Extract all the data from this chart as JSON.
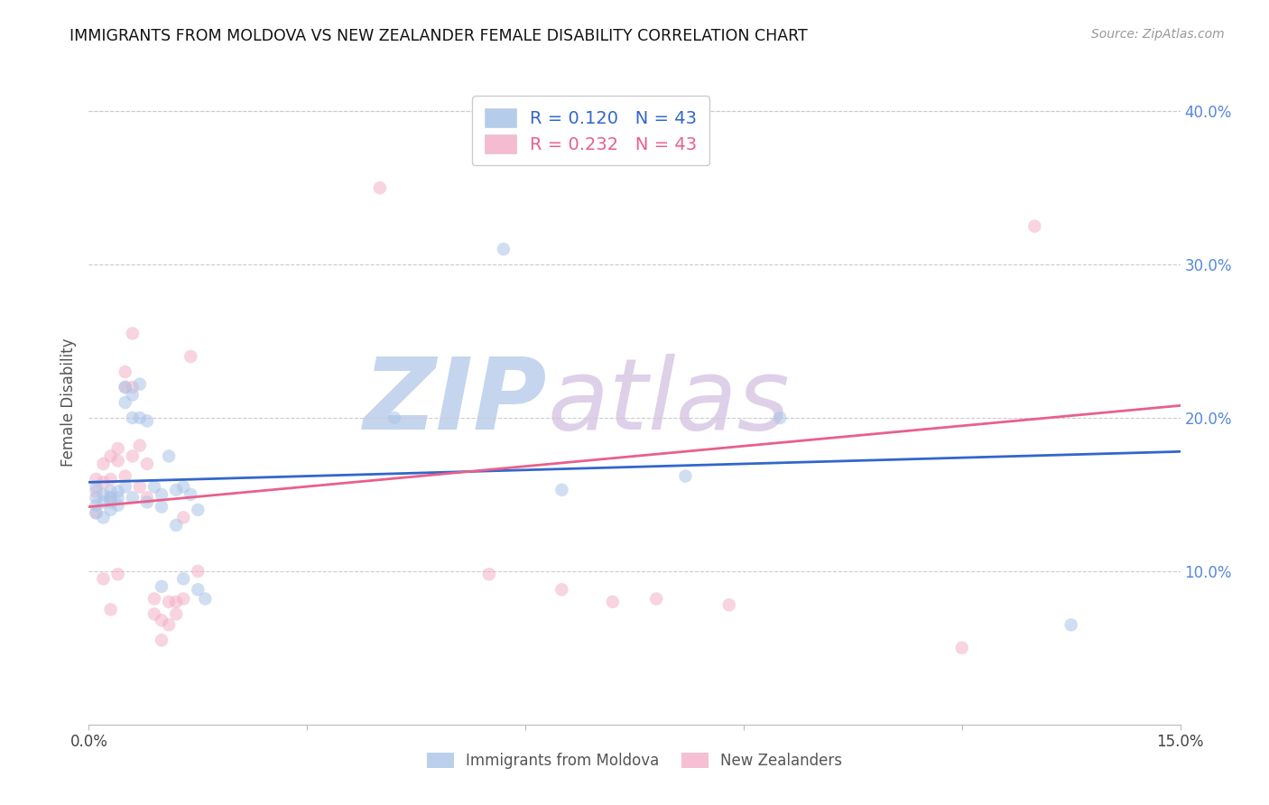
{
  "title": "IMMIGRANTS FROM MOLDOVA VS NEW ZEALANDER FEMALE DISABILITY CORRELATION CHART",
  "source": "Source: ZipAtlas.com",
  "ylabel": "Female Disability",
  "legend_blue_label": "Immigrants from Moldova",
  "legend_pink_label": "New Zealanders",
  "R_blue": 0.12,
  "R_pink": 0.232,
  "N_blue": 43,
  "N_pink": 43,
  "xlim": [
    0.0,
    0.15
  ],
  "ylim": [
    0.0,
    0.42
  ],
  "x_ticks": [
    0.0,
    0.03,
    0.06,
    0.09,
    0.12,
    0.15
  ],
  "x_tick_labels": [
    "0.0%",
    "",
    "",
    "",
    "",
    "15.0%"
  ],
  "y_ticks_right": [
    0.1,
    0.2,
    0.3,
    0.4
  ],
  "y_tick_labels_right": [
    "10.0%",
    "20.0%",
    "30.0%",
    "40.0%"
  ],
  "blue_color": "#aac4e8",
  "pink_color": "#f4afc8",
  "blue_line_color": "#3366cc",
  "pink_line_color": "#e8608a",
  "watermark_zip_color": "#c8d8f0",
  "watermark_atlas_color": "#d8cce8",
  "blue_x": [
    0.001,
    0.001,
    0.001,
    0.001,
    0.002,
    0.002,
    0.002,
    0.003,
    0.003,
    0.003,
    0.003,
    0.004,
    0.004,
    0.004,
    0.005,
    0.005,
    0.005,
    0.006,
    0.006,
    0.006,
    0.007,
    0.007,
    0.008,
    0.008,
    0.009,
    0.01,
    0.01,
    0.01,
    0.011,
    0.012,
    0.012,
    0.013,
    0.013,
    0.014,
    0.015,
    0.015,
    0.016,
    0.042,
    0.057,
    0.065,
    0.082,
    0.095,
    0.135
  ],
  "blue_y": [
    0.155,
    0.148,
    0.143,
    0.138,
    0.15,
    0.145,
    0.135,
    0.152,
    0.148,
    0.145,
    0.14,
    0.152,
    0.148,
    0.143,
    0.22,
    0.21,
    0.155,
    0.215,
    0.2,
    0.148,
    0.222,
    0.2,
    0.198,
    0.145,
    0.155,
    0.15,
    0.142,
    0.09,
    0.175,
    0.153,
    0.13,
    0.155,
    0.095,
    0.15,
    0.14,
    0.088,
    0.082,
    0.2,
    0.31,
    0.153,
    0.162,
    0.2,
    0.065
  ],
  "pink_x": [
    0.001,
    0.001,
    0.001,
    0.002,
    0.002,
    0.002,
    0.003,
    0.003,
    0.003,
    0.003,
    0.004,
    0.004,
    0.004,
    0.005,
    0.005,
    0.005,
    0.006,
    0.006,
    0.006,
    0.007,
    0.007,
    0.008,
    0.008,
    0.009,
    0.009,
    0.01,
    0.01,
    0.011,
    0.011,
    0.012,
    0.012,
    0.013,
    0.013,
    0.014,
    0.015,
    0.04,
    0.055,
    0.065,
    0.072,
    0.078,
    0.088,
    0.12,
    0.13
  ],
  "pink_y": [
    0.16,
    0.152,
    0.138,
    0.17,
    0.158,
    0.095,
    0.175,
    0.16,
    0.148,
    0.075,
    0.18,
    0.172,
    0.098,
    0.23,
    0.22,
    0.162,
    0.255,
    0.22,
    0.175,
    0.182,
    0.155,
    0.17,
    0.148,
    0.082,
    0.072,
    0.068,
    0.055,
    0.08,
    0.065,
    0.08,
    0.072,
    0.082,
    0.135,
    0.24,
    0.1,
    0.35,
    0.098,
    0.088,
    0.08,
    0.082,
    0.078,
    0.05,
    0.325
  ],
  "blue_line_x0": 0.0,
  "blue_line_x1": 0.15,
  "blue_line_y0": 0.158,
  "blue_line_y1": 0.178,
  "pink_line_x0": 0.0,
  "pink_line_x1": 0.15,
  "pink_line_y0": 0.142,
  "pink_line_y1": 0.208,
  "scatter_size": 110,
  "scatter_alpha": 0.55,
  "background_color": "#ffffff",
  "grid_color": "#cccccc",
  "title_color": "#111111",
  "right_axis_color": "#5588dd",
  "watermark_color": "#ccd8ee",
  "watermark_fontsize": 80
}
